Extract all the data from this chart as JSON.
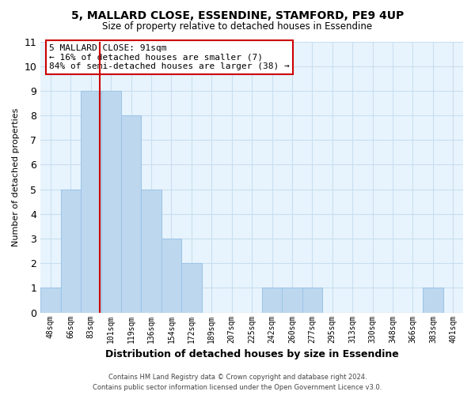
{
  "title": "5, MALLARD CLOSE, ESSENDINE, STAMFORD, PE9 4UP",
  "subtitle": "Size of property relative to detached houses in Essendine",
  "xlabel": "Distribution of detached houses by size in Essendine",
  "ylabel": "Number of detached properties",
  "bar_labels": [
    "48sqm",
    "66sqm",
    "83sqm",
    "101sqm",
    "119sqm",
    "136sqm",
    "154sqm",
    "172sqm",
    "189sqm",
    "207sqm",
    "225sqm",
    "242sqm",
    "260sqm",
    "277sqm",
    "295sqm",
    "313sqm",
    "330sqm",
    "348sqm",
    "366sqm",
    "383sqm",
    "401sqm"
  ],
  "bar_values": [
    1,
    5,
    9,
    9,
    8,
    5,
    3,
    2,
    0,
    0,
    0,
    1,
    1,
    1,
    0,
    0,
    0,
    0,
    0,
    1,
    0
  ],
  "bar_color": "#bdd7ee",
  "bar_edge_color": "#9ec5e8",
  "grid_color": "#c8dff0",
  "background_color": "#ffffff",
  "plot_bg_color": "#e8f4fd",
  "vline_x_index": 2.67,
  "vline_color": "#cc0000",
  "ann_line1": "5 MALLARD CLOSE: 91sqm",
  "ann_line2": "← 16% of detached houses are smaller (7)",
  "ann_line3": "84% of semi-detached houses are larger (38) →",
  "annotation_box_color": "#ffffff",
  "annotation_box_edge": "#cc0000",
  "footer_line1": "Contains HM Land Registry data © Crown copyright and database right 2024.",
  "footer_line2": "Contains public sector information licensed under the Open Government Licence v3.0.",
  "ylim": [
    0,
    11
  ],
  "yticks": [
    0,
    1,
    2,
    3,
    4,
    5,
    6,
    7,
    8,
    9,
    10,
    11
  ]
}
